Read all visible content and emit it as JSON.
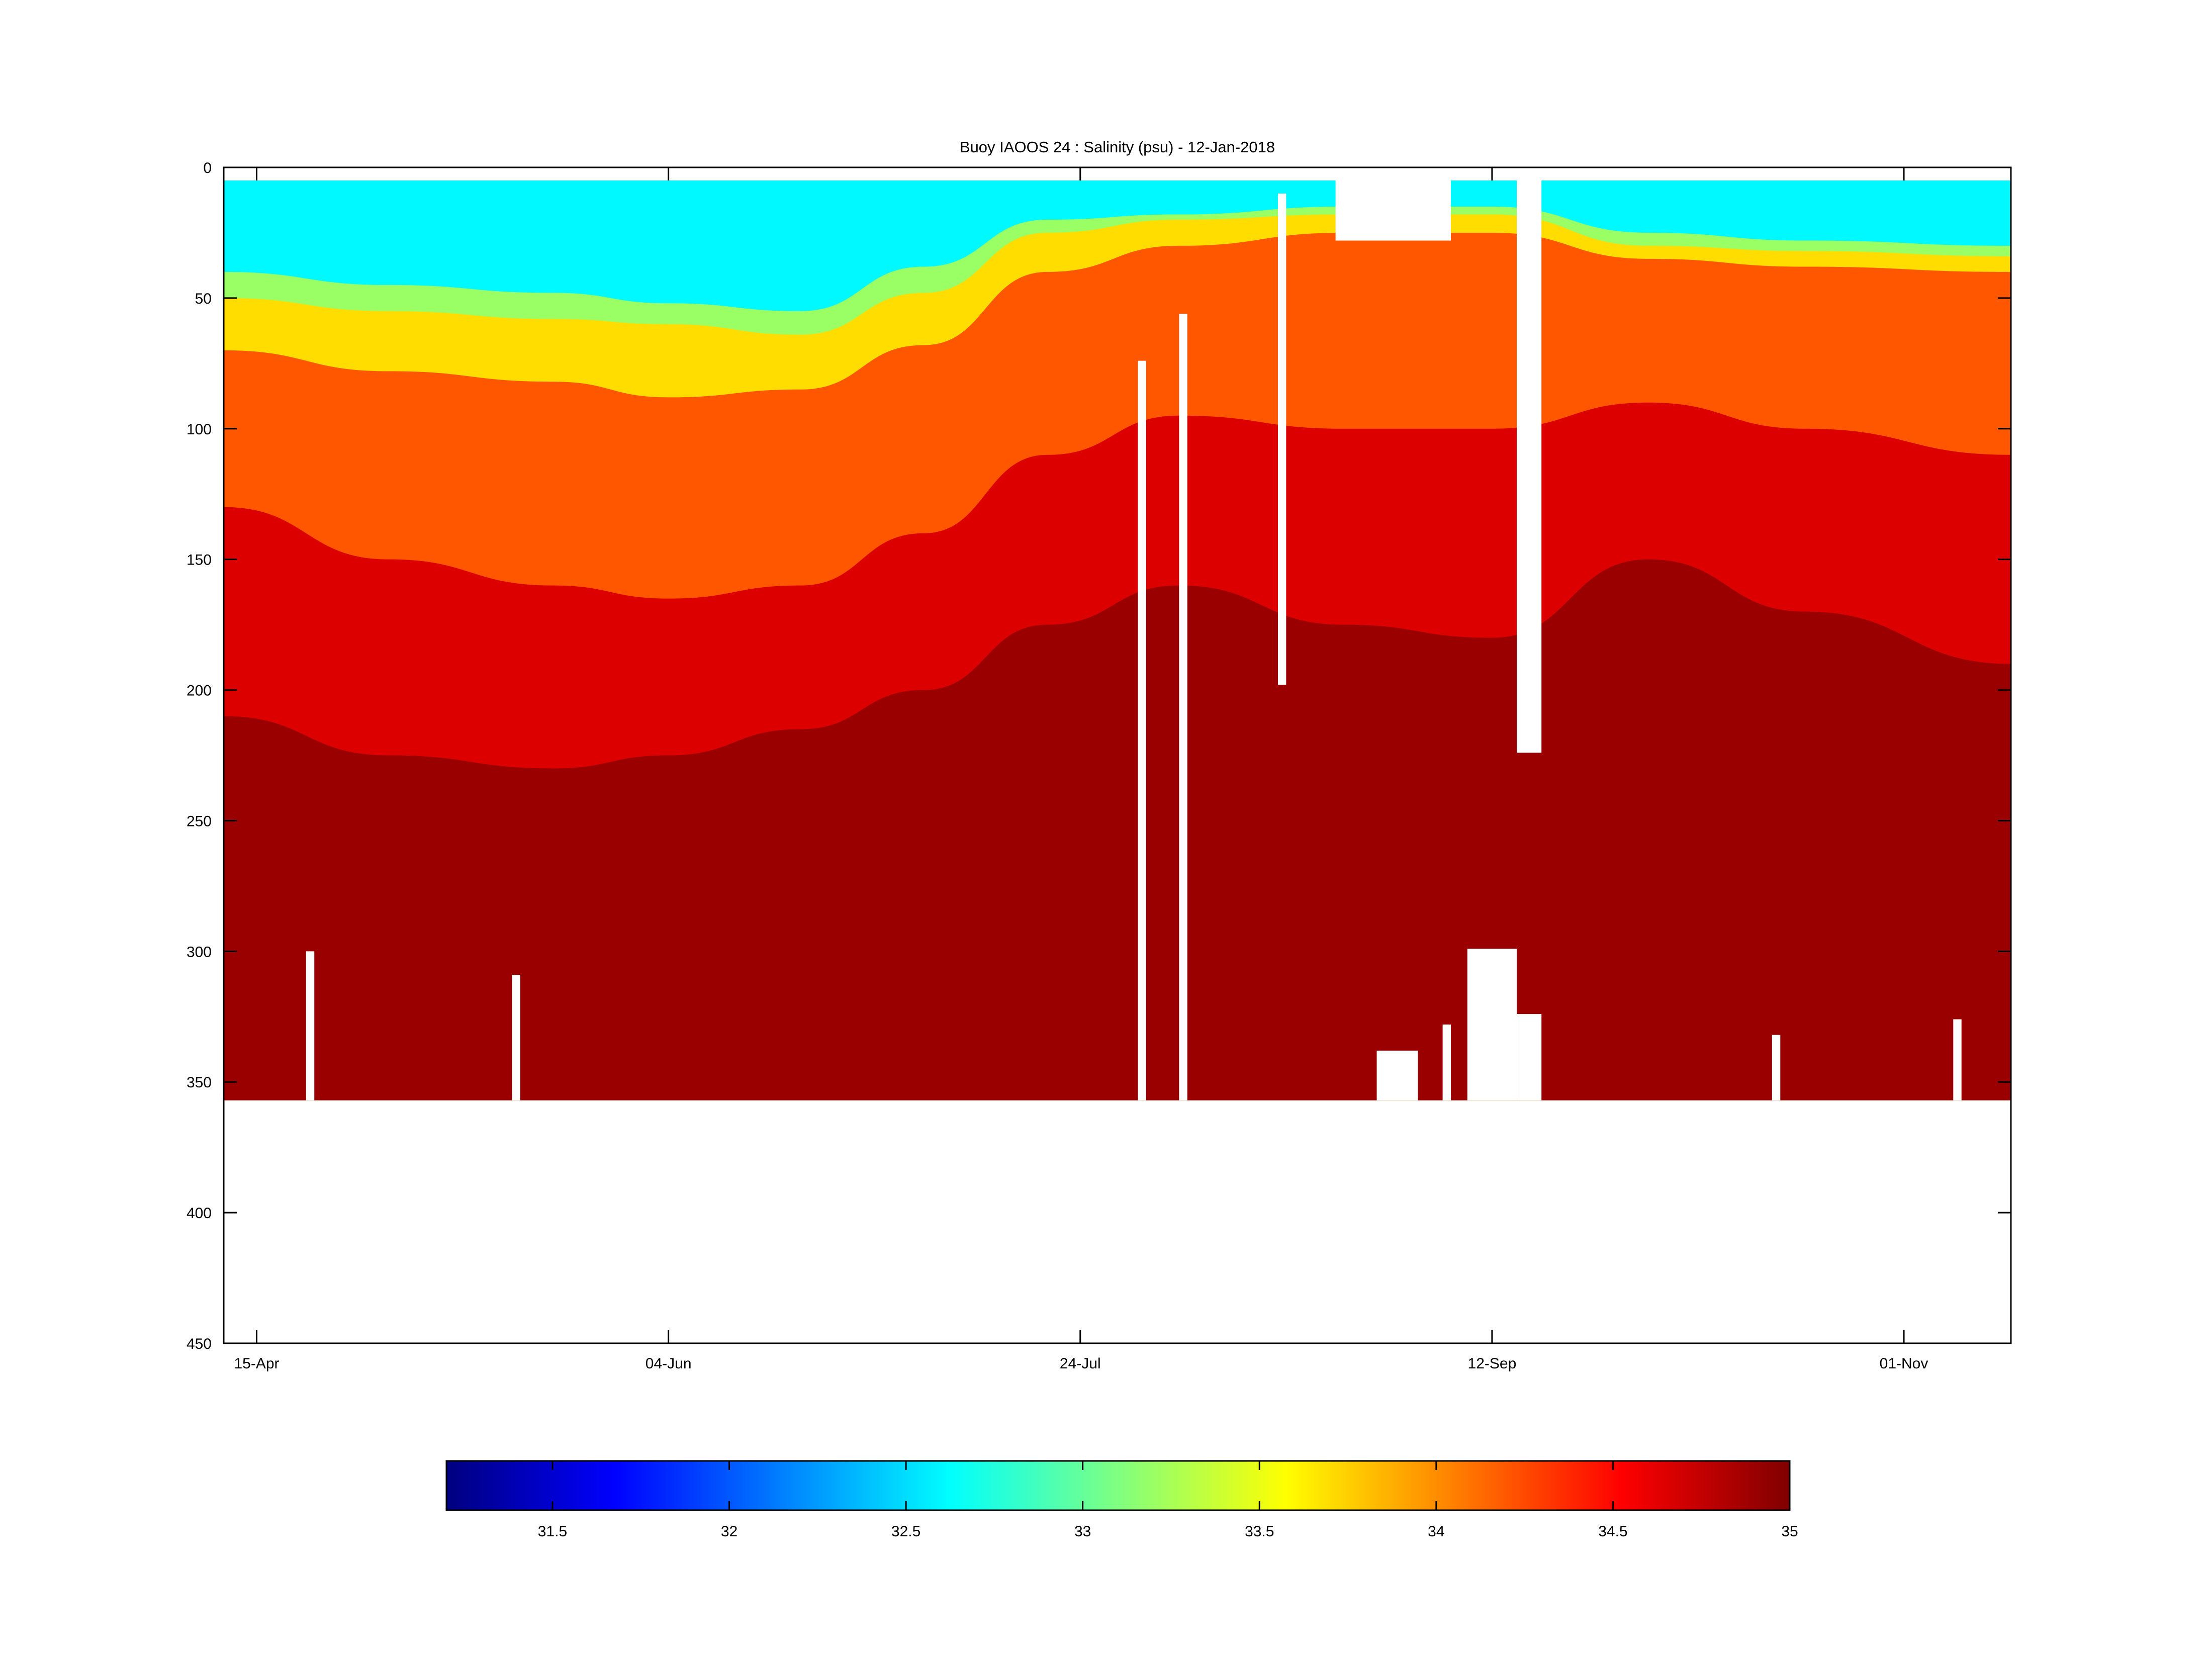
{
  "chart_data": {
    "type": "heatmap",
    "title": "Buoy IAOOS 24 : Salinity (psu) - 12-Jan-2018",
    "xlabel": "",
    "ylabel": "",
    "x_range": [
      "2017-04-11",
      "2017-11-14"
    ],
    "x_ticks": [
      {
        "date": "2017-04-15",
        "label": "15-Apr"
      },
      {
        "date": "2017-06-04",
        "label": "04-Jun"
      },
      {
        "date": "2017-07-24",
        "label": "24-Jul"
      },
      {
        "date": "2017-09-12",
        "label": "12-Sep"
      },
      {
        "date": "2017-11-01",
        "label": "01-Nov"
      }
    ],
    "y_range": [
      0,
      450
    ],
    "y_reversed": true,
    "y_ticks": [
      0,
      50,
      100,
      150,
      200,
      250,
      300,
      350,
      400,
      450
    ],
    "grid": false,
    "colorbar": {
      "orientation": "horizontal",
      "placement": "bottom",
      "colormap": "jet",
      "range": [
        31.2,
        35
      ],
      "ticks": [
        31.5,
        32,
        32.5,
        33,
        33.5,
        34,
        34.5,
        35
      ]
    },
    "profile_depth_max": 357,
    "layers": [
      {
        "date": "2017-04-11",
        "d33": 40,
        "d335": 50,
        "d34": 70,
        "d345": 130,
        "d348": 210
      },
      {
        "date": "2017-05-01",
        "d33": 45,
        "d335": 55,
        "d34": 78,
        "d345": 150,
        "d348": 225
      },
      {
        "date": "2017-05-21",
        "d33": 48,
        "d335": 58,
        "d34": 82,
        "d345": 160,
        "d348": 230
      },
      {
        "date": "2017-06-04",
        "d33": 52,
        "d335": 60,
        "d34": 88,
        "d345": 165,
        "d348": 225
      },
      {
        "date": "2017-06-20",
        "d33": 55,
        "d335": 64,
        "d34": 85,
        "d345": 160,
        "d348": 215
      },
      {
        "date": "2017-07-05",
        "d33": 38,
        "d335": 48,
        "d34": 68,
        "d345": 140,
        "d348": 200
      },
      {
        "date": "2017-07-20",
        "d33": 20,
        "d335": 25,
        "d34": 40,
        "d345": 110,
        "d348": 175
      },
      {
        "date": "2017-08-05",
        "d33": 18,
        "d335": 20,
        "d34": 30,
        "d345": 95,
        "d348": 160
      },
      {
        "date": "2017-08-25",
        "d33": 15,
        "d335": 18,
        "d34": 25,
        "d345": 100,
        "d348": 175
      },
      {
        "date": "2017-09-12",
        "d33": 15,
        "d335": 18,
        "d34": 25,
        "d345": 100,
        "d348": 180
      },
      {
        "date": "2017-10-01",
        "d33": 25,
        "d335": 30,
        "d34": 35,
        "d345": 90,
        "d348": 150
      },
      {
        "date": "2017-10-20",
        "d33": 28,
        "d335": 32,
        "d34": 38,
        "d345": 100,
        "d348": 170
      },
      {
        "date": "2017-11-14",
        "d33": 30,
        "d335": 34,
        "d34": 40,
        "d345": 110,
        "d348": 190
      }
    ],
    "gaps": [
      {
        "start": "2017-07-31",
        "end": "2017-08-01",
        "top": 74,
        "bottom": 357
      },
      {
        "start": "2017-08-05",
        "end": "2017-08-06",
        "top": 56,
        "bottom": 357
      },
      {
        "start": "2017-08-17",
        "end": "2017-08-18",
        "top": 10,
        "bottom": 198
      },
      {
        "start": "2017-08-24",
        "end": "2017-09-07",
        "top": 5,
        "bottom": 28
      },
      {
        "start": "2017-08-29",
        "end": "2017-09-03",
        "top": 338,
        "bottom": 357
      },
      {
        "start": "2017-09-09",
        "end": "2017-09-15",
        "top": 299,
        "bottom": 357
      },
      {
        "start": "2017-09-15",
        "end": "2017-09-18",
        "top": 5,
        "bottom": 224
      },
      {
        "start": "2017-09-15",
        "end": "2017-09-18",
        "top": 324,
        "bottom": 357
      },
      {
        "start": "2017-04-21",
        "end": "2017-04-22",
        "top": 300,
        "bottom": 357
      },
      {
        "start": "2017-05-16",
        "end": "2017-05-17",
        "top": 309,
        "bottom": 357
      },
      {
        "start": "2017-09-06",
        "end": "2017-09-07",
        "top": 328,
        "bottom": 357
      },
      {
        "start": "2017-10-16",
        "end": "2017-10-17",
        "top": 332,
        "bottom": 357
      },
      {
        "start": "2017-11-07",
        "end": "2017-11-08",
        "top": 326,
        "bottom": 357
      }
    ]
  }
}
